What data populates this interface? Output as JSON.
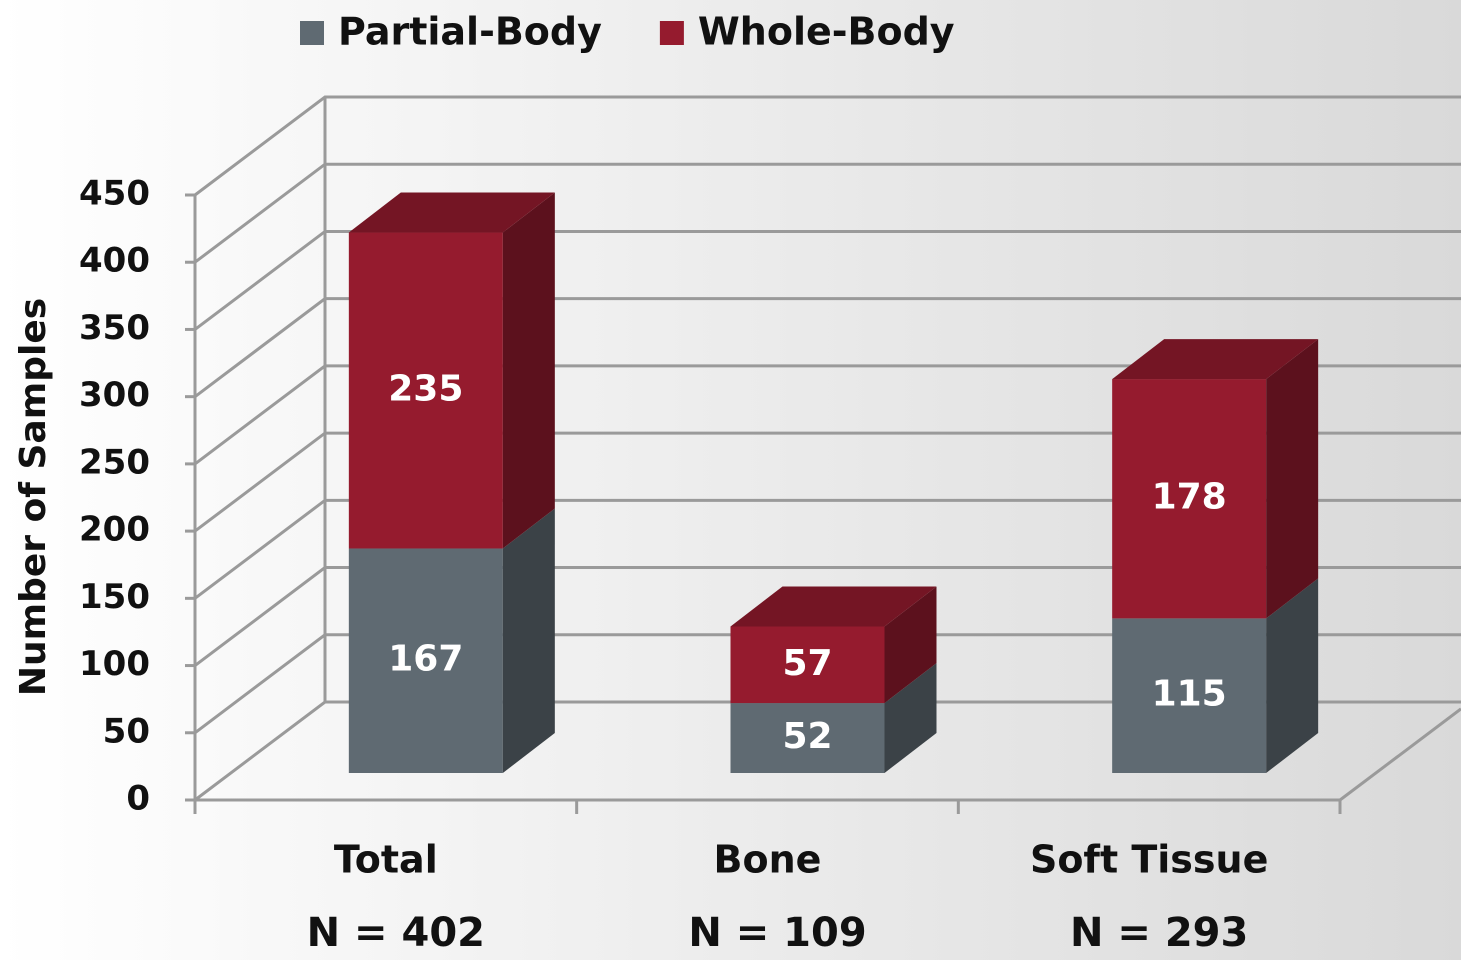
{
  "chart_data": {
    "type": "bar3d_stacked",
    "categories": [
      "Total",
      "Bone",
      "Soft Tissue"
    ],
    "category_sublabels": [
      "N = 402",
      "N = 109",
      "N = 293"
    ],
    "series": [
      {
        "name": "Partial-Body",
        "color": "#5f6a72",
        "values": [
          167,
          52,
          115
        ]
      },
      {
        "name": "Whole-Body",
        "color": "#951b2e",
        "values": [
          235,
          57,
          178
        ]
      }
    ],
    "y_label": "Number of Samples",
    "ylim": [
      0,
      450
    ],
    "yticks": [
      0,
      50,
      100,
      150,
      200,
      250,
      300,
      350,
      400,
      450
    ],
    "grid": true,
    "legend": "top"
  }
}
